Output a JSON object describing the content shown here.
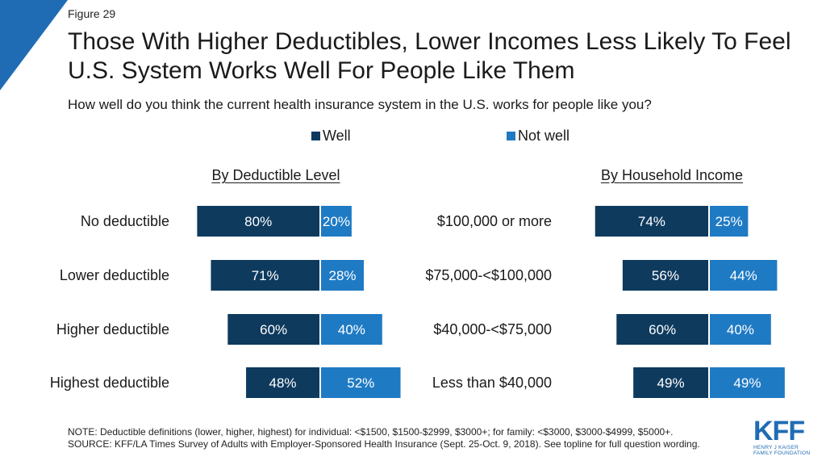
{
  "figure_label": "Figure 29",
  "title": "Those With Higher Deductibles, Lower Incomes Less Likely To Feel U.S. System Works Well For People Like Them",
  "subtitle": "How well do you think the current health insurance system in the U.S. works for people like you?",
  "colors": {
    "well": "#0e3a5e",
    "not_well": "#1f7ac4",
    "accent": "#1f6cb5",
    "bar_text": "#ffffff"
  },
  "legend": [
    {
      "label": "Well",
      "color": "#0e3a5e"
    },
    {
      "label": "Not well",
      "color": "#1f7ac4"
    }
  ],
  "notes": {
    "line1": "NOTE: Deductible definitions (lower, higher, highest) for individual: <$1500, $1500-$2999, $3000+; for family: <$3000, $3000-$4999, $5000+.",
    "line2": "SOURCE: KFF/LA Times Survey of Adults with Employer-Sponsored Health Insurance (Sept. 25-Oct. 9, 2018). See topline for full question wording."
  },
  "logo": {
    "name": "KFF",
    "subtitle_line1": "HENRY J KAISER",
    "subtitle_line2": "FAMILY FOUNDATION"
  },
  "chart_data": [
    {
      "type": "bar",
      "orientation": "horizontal",
      "layout": "diverging",
      "title": "By Deductible Level",
      "categories": [
        "No deductible",
        "Lower deductible",
        "Higher deductible",
        "Highest deductible"
      ],
      "series": [
        {
          "name": "Well",
          "values": [
            80,
            71,
            60,
            48
          ]
        },
        {
          "name": "Not well",
          "values": [
            20,
            28,
            40,
            52
          ]
        }
      ],
      "value_suffix": "%"
    },
    {
      "type": "bar",
      "orientation": "horizontal",
      "layout": "diverging",
      "title": "By Household Income",
      "categories": [
        "$100,000 or more",
        "$75,000-<$100,000",
        "$40,000-<$75,000",
        "Less than $40,000"
      ],
      "series": [
        {
          "name": "Well",
          "values": [
            74,
            56,
            60,
            49
          ]
        },
        {
          "name": "Not well",
          "values": [
            25,
            44,
            40,
            49
          ]
        }
      ],
      "value_suffix": "%"
    }
  ]
}
